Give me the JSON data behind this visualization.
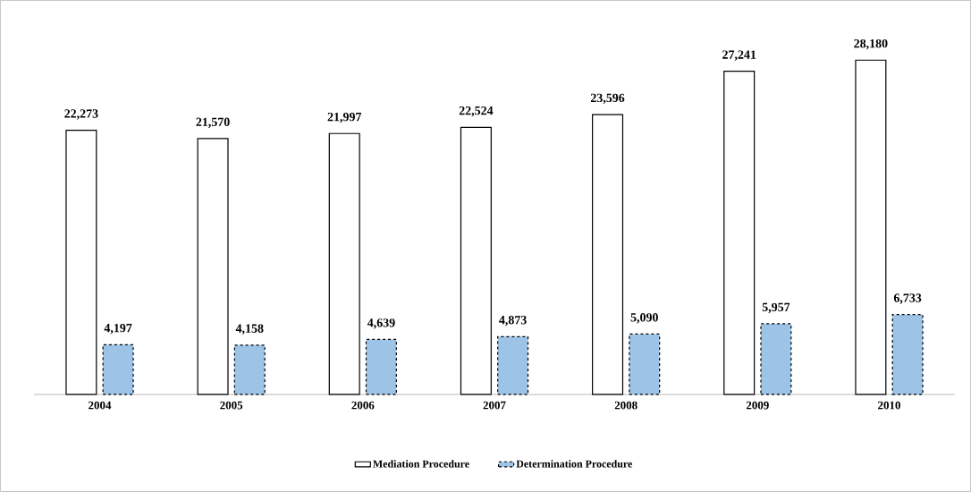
{
  "chart_data": {
    "type": "bar",
    "legend": "bottom",
    "categories": [
      "2004",
      "2005",
      "2006",
      "2007",
      "2008",
      "2009",
      "2010"
    ],
    "series": [
      {
        "name": "Mediation Procedure",
        "color": "#ffffff",
        "line_style": "solid",
        "values": [
          22273,
          21570,
          21997,
          22524,
          23596,
          27241,
          28180
        ],
        "value_labels": [
          "22,273",
          "21,570",
          "21,997",
          "22,524",
          "23,596",
          "27,241",
          "28,180"
        ]
      },
      {
        "name": "Determination Procedure",
        "color": "#9dc3e6",
        "line_style": "dashed",
        "values": [
          4197,
          4158,
          4639,
          4873,
          5090,
          5957,
          6733
        ],
        "value_labels": [
          "4,197",
          "4,158",
          "4,639",
          "4,873",
          "5,090",
          "5,957",
          "6,733"
        ]
      }
    ]
  }
}
